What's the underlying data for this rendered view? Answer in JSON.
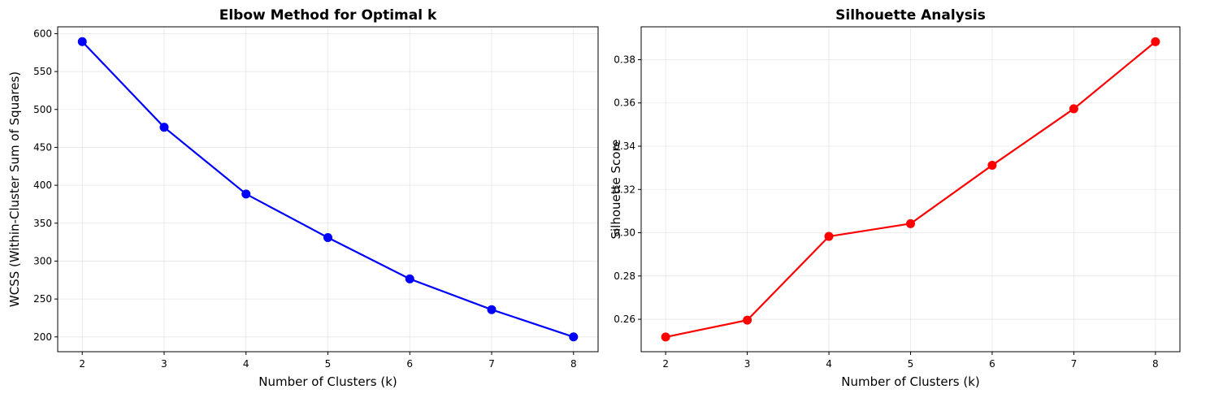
{
  "chart_data": [
    {
      "type": "line",
      "title": "Elbow Method for Optimal k",
      "xlabel": "Number of Clusters (k)",
      "ylabel": "WCSS (Within-Cluster Sum of Squares)",
      "x": [
        2,
        3,
        4,
        5,
        6,
        7,
        8
      ],
      "series": [
        {
          "values": [
            589.5,
            476.5,
            388.5,
            331.0,
            276.5,
            236.0,
            200.0
          ],
          "color": "#0000ff",
          "marker": "circle"
        }
      ],
      "xlim": [
        1.7,
        8.3
      ],
      "ylim": [
        180.5,
        609.0
      ],
      "xticks": [
        2,
        3,
        4,
        5,
        6,
        7,
        8
      ],
      "xtick_labels": [
        "2",
        "3",
        "4",
        "5",
        "6",
        "7",
        "8"
      ],
      "yticks": [
        200,
        250,
        300,
        350,
        400,
        450,
        500,
        550,
        600
      ],
      "ytick_labels": [
        "200",
        "250",
        "300",
        "350",
        "400",
        "450",
        "500",
        "550",
        "600"
      ],
      "grid": true
    },
    {
      "type": "line",
      "title": "Silhouette Analysis",
      "xlabel": "Number of Clusters (k)",
      "ylabel": "Silhouette Score",
      "x": [
        2,
        3,
        4,
        5,
        6,
        7,
        8
      ],
      "series": [
        {
          "values": [
            0.2518,
            0.2596,
            0.2983,
            0.3042,
            0.3312,
            0.3573,
            0.3883
          ],
          "color": "#ff0000",
          "marker": "circle"
        }
      ],
      "xlim": [
        1.7,
        8.3
      ],
      "ylim": [
        0.245,
        0.3952
      ],
      "xticks": [
        2,
        3,
        4,
        5,
        6,
        7,
        8
      ],
      "xtick_labels": [
        "2",
        "3",
        "4",
        "5",
        "6",
        "7",
        "8"
      ],
      "yticks": [
        0.26,
        0.28,
        0.3,
        0.32,
        0.34,
        0.36,
        0.38
      ],
      "ytick_labels": [
        "0.26",
        "0.28",
        "0.30",
        "0.32",
        "0.34",
        "0.36",
        "0.38"
      ],
      "grid": true
    }
  ]
}
